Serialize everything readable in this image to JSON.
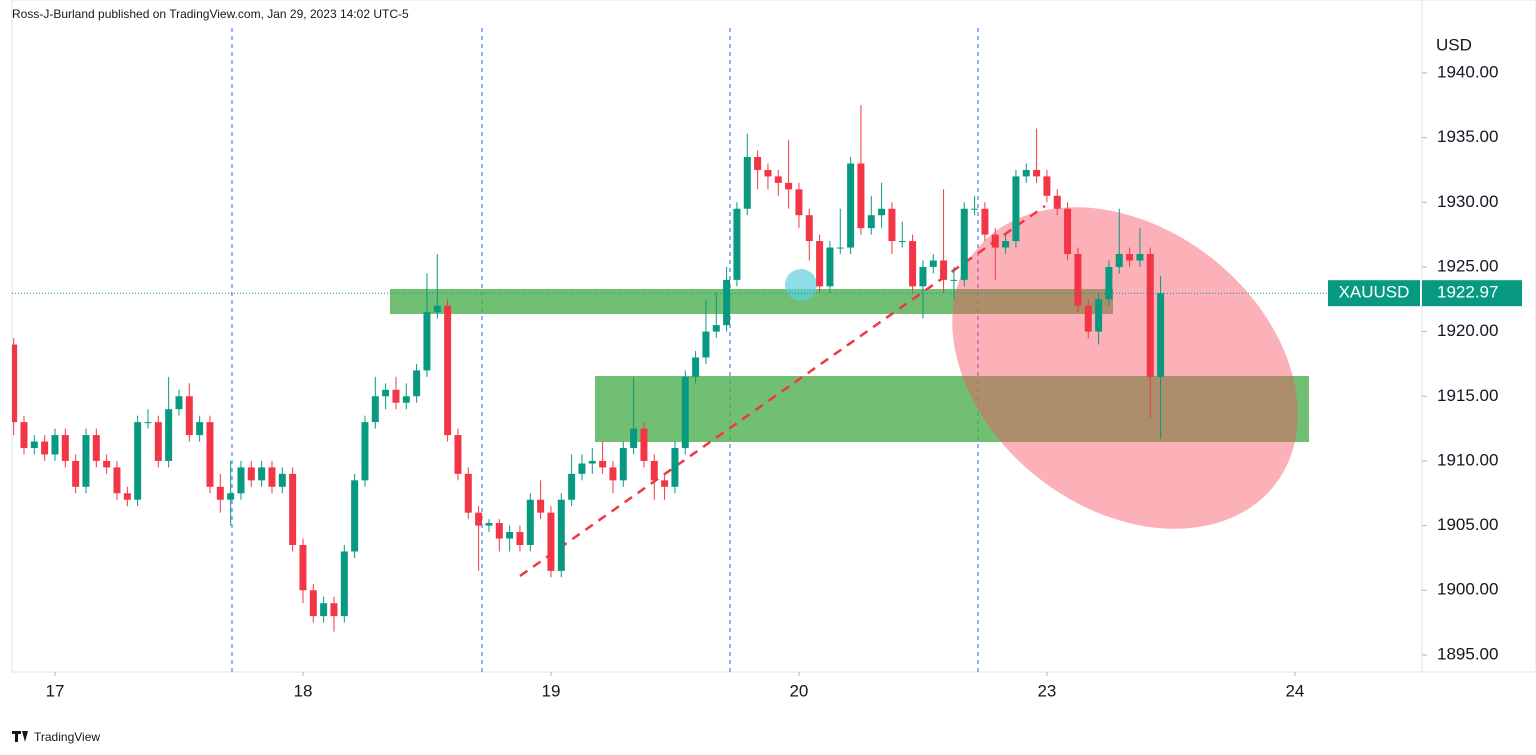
{
  "header": "Ross-J-Burland published on TradingView.com, Jan 29, 2023 14:02 UTC-5",
  "footer": "TradingView",
  "chart_data": {
    "type": "candlestick",
    "symbol": "XAUUSD",
    "y_axis_label": "USD",
    "up_color": "#089981",
    "down_color": "#f23645",
    "xlim": [
      -4.16,
      132.3
    ],
    "xticks": [
      {
        "value": 0,
        "label": "17"
      },
      {
        "value": 24,
        "label": "18"
      },
      {
        "value": 48,
        "label": "19"
      },
      {
        "value": 72,
        "label": "20"
      },
      {
        "value": 96,
        "label": "23"
      },
      {
        "value": 120,
        "label": "24"
      }
    ],
    "ylim": [
      1893.68,
      1945.64
    ],
    "yticks": [
      {
        "value": 1895,
        "label": "1895.00"
      },
      {
        "value": 1900,
        "label": "1900.00"
      },
      {
        "value": 1905,
        "label": "1905.00"
      },
      {
        "value": 1910,
        "label": "1910.00"
      },
      {
        "value": 1915,
        "label": "1915.00"
      },
      {
        "value": 1920,
        "label": "1920.00"
      },
      {
        "value": 1925,
        "label": "1925.00"
      },
      {
        "value": 1930,
        "label": "1930.00"
      },
      {
        "value": 1935,
        "label": "1935.00"
      },
      {
        "value": 1940,
        "label": "1940.00"
      }
    ],
    "x": [
      -4,
      -3,
      -2,
      -1,
      0,
      1,
      2,
      3,
      4,
      5,
      6,
      7,
      8,
      9,
      10,
      11,
      12,
      13,
      14,
      15,
      16,
      17,
      18,
      19,
      20,
      21,
      22,
      23,
      24,
      25,
      26,
      27,
      28,
      29,
      30,
      31,
      32,
      33,
      34,
      35,
      36,
      37,
      38,
      39,
      40,
      41,
      42,
      43,
      44,
      45,
      46,
      47,
      48,
      49,
      50,
      51,
      52,
      53,
      54,
      55,
      56,
      57,
      58,
      59,
      60,
      61,
      62,
      63,
      64,
      65,
      66,
      67,
      68,
      69,
      70,
      71,
      72,
      73,
      74,
      75,
      76,
      77,
      78,
      79,
      80,
      81,
      82,
      83,
      84,
      85,
      86,
      87,
      88,
      89,
      90,
      91,
      92,
      93,
      94,
      95,
      96,
      97,
      98,
      99,
      100,
      101,
      102,
      103,
      104,
      105,
      106,
      107
    ],
    "open": [
      1919,
      1913,
      1911,
      1911.5,
      1910.5,
      1912,
      1910,
      1908,
      1912,
      1910,
      1909.5,
      1907.5,
      1907,
      1913,
      1913,
      1910,
      1914,
      1915,
      1912,
      1913,
      1908,
      1907,
      1907.5,
      1909.5,
      1908.5,
      1909.5,
      1908,
      1909,
      1903.5,
      1900,
      1898,
      1899,
      1898,
      1903,
      1908.5,
      1913,
      1915,
      1915.5,
      1914.5,
      1915,
      1917,
      1921.5,
      1922,
      1912,
      1909,
      1906,
      1905,
      1905.2,
      1904,
      1904.5,
      1903.5,
      1907,
      1906,
      1901.5,
      1907,
      1909,
      1909.8,
      1910,
      1909.5,
      1908.5,
      1911,
      1912.5,
      1910,
      1908.5,
      1908,
      1911,
      1916.5,
      1918,
      1920,
      1920.5,
      1924,
      1929.5,
      1933.5,
      1932.5,
      1932,
      1931.5,
      1931,
      1929,
      1927,
      1923.5,
      1926.5,
      1926.5,
      1933,
      1928,
      1929,
      1929.5,
      1927,
      1927,
      1923.5,
      1925,
      1925.5,
      1924,
      1924,
      1929.5,
      1929.5,
      1927.5,
      1926.5,
      1927,
      1932,
      1932.5,
      1932,
      1930.5,
      1929.5,
      1926,
      1922,
      1920,
      1922.5,
      1925,
      1926,
      1925.5,
      1926,
      1916.5
    ],
    "high": [
      1919.5,
      1913.5,
      1912,
      1912,
      1912.5,
      1912.5,
      1910.5,
      1912.5,
      1912.5,
      1910.5,
      1910,
      1908,
      1913.5,
      1914,
      1913.5,
      1916.5,
      1915.5,
      1916,
      1913.5,
      1913.5,
      1909,
      1910,
      1910,
      1910,
      1910,
      1910,
      1909.5,
      1909.5,
      1904,
      1900.5,
      1899.5,
      1899.5,
      1903.5,
      1909,
      1913.5,
      1916.5,
      1916,
      1916.5,
      1916,
      1917.5,
      1924.5,
      1926,
      1922.5,
      1912.5,
      1909.5,
      1906.5,
      1905.5,
      1905.5,
      1905,
      1905,
      1907.5,
      1908.5,
      1906.5,
      1907.5,
      1910.5,
      1910.5,
      1911,
      1911.5,
      1910,
      1911.5,
      1916.5,
      1913,
      1910.5,
      1909,
      1911.5,
      1917,
      1918.5,
      1922.5,
      1923,
      1925,
      1930,
      1935.3,
      1934,
      1933,
      1932.5,
      1934.8,
      1931.5,
      1929.5,
      1927.5,
      1927,
      1929.5,
      1933.5,
      1937.5,
      1930.5,
      1931.5,
      1930,
      1928.5,
      1927.5,
      1925.5,
      1926,
      1931,
      1925,
      1930,
      1930.5,
      1930,
      1928,
      1927.5,
      1932.5,
      1933,
      1935.7,
      1932.5,
      1931,
      1930,
      1926.5,
      1922.5,
      1923,
      1925.5,
      1929.5,
      1926.5,
      1928,
      1926.5,
      1924.3
    ],
    "low": [
      1912,
      1910.5,
      1910.5,
      1910,
      1910,
      1909.5,
      1907.5,
      1907.5,
      1909.5,
      1909,
      1907,
      1906.5,
      1906.5,
      1912.5,
      1909.5,
      1909.5,
      1913.5,
      1911.5,
      1911.5,
      1907.5,
      1906,
      1905,
      1907,
      1908,
      1908,
      1907.5,
      1907.5,
      1903,
      1899,
      1897.5,
      1897.5,
      1896.8,
      1897.5,
      1902.5,
      1908,
      1912.5,
      1914,
      1914,
      1914,
      1914.5,
      1916.5,
      1921,
      1911.5,
      1908.5,
      1905.5,
      1901.5,
      1904.5,
      1903,
      1903,
      1903,
      1903,
      1905.5,
      1901,
      1901,
      1906.5,
      1908.5,
      1909,
      1909,
      1907.5,
      1908,
      1910.5,
      1909.5,
      1907,
      1907,
      1907.5,
      1910.5,
      1916,
      1917.5,
      1919.5,
      1920,
      1923.5,
      1929,
      1931,
      1931,
      1930.5,
      1929.5,
      1928,
      1925.5,
      1923,
      1923,
      1926,
      1926,
      1927.5,
      1927.5,
      1928,
      1926,
      1926.5,
      1923,
      1921,
      1924.5,
      1923,
      1922.5,
      1923.5,
      1929,
      1927,
      1924,
      1926,
      1926.5,
      1931.5,
      1931.5,
      1930,
      1929,
      1925.5,
      1921.5,
      1919.5,
      1919,
      1922,
      1924.5,
      1925,
      1925,
      1913.3,
      1911.7
    ],
    "close": [
      1913,
      1911,
      1911.5,
      1910.5,
      1912,
      1910,
      1908,
      1912,
      1910,
      1909.5,
      1907.5,
      1907,
      1913,
      1913,
      1910,
      1914,
      1915,
      1912,
      1913,
      1908,
      1907,
      1907.5,
      1909.5,
      1908.5,
      1909.5,
      1908,
      1909,
      1903.5,
      1900,
      1898,
      1899,
      1898,
      1903,
      1908.5,
      1913,
      1915,
      1915.5,
      1914.5,
      1915,
      1917,
      1921.5,
      1922,
      1912,
      1909,
      1906,
      1905,
      1905.2,
      1904,
      1904.5,
      1903.5,
      1907,
      1906,
      1901.5,
      1907,
      1909,
      1909.8,
      1910,
      1909.5,
      1908.5,
      1911,
      1912.5,
      1910,
      1908.5,
      1908,
      1911,
      1916.5,
      1918,
      1920,
      1920.5,
      1924,
      1929.5,
      1933.5,
      1932.5,
      1932,
      1931.5,
      1931,
      1929,
      1927,
      1923.5,
      1926.5,
      1926.5,
      1933,
      1928,
      1929,
      1929.5,
      1927,
      1927,
      1923.5,
      1925,
      1925.5,
      1924,
      1924,
      1929.5,
      1929.5,
      1927.5,
      1926.5,
      1927,
      1932,
      1932.5,
      1932,
      1930.5,
      1929.5,
      1926,
      1922,
      1920,
      1922.5,
      1925,
      1926,
      1925.5,
      1926,
      1916.5,
      1922.97
    ]
  }
}
